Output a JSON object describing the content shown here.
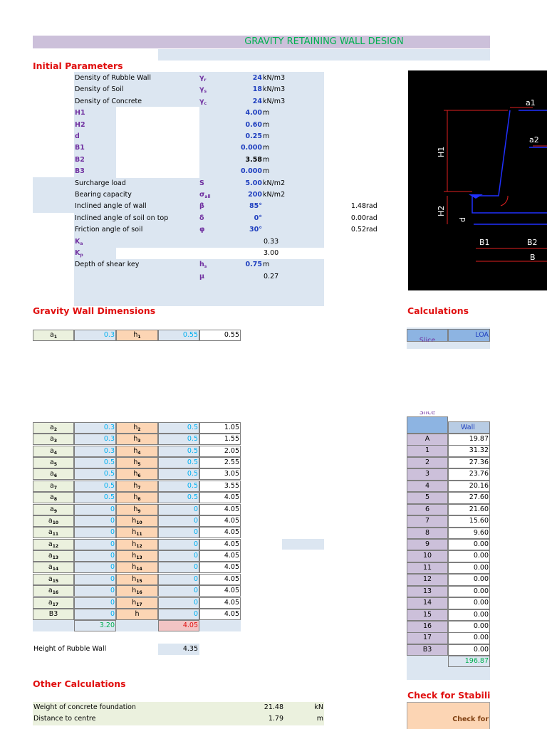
{
  "title": "GRAVITY RETAINING WALL DESIGN",
  "initial_parameters": {
    "heading": "Initial Parameters",
    "rows": [
      {
        "label": "Density of Rubble Wall",
        "symbol": "γ",
        "symbol_sub": "r",
        "value": "24",
        "unit": "kN/m3"
      },
      {
        "label": "Density of Soil",
        "symbol": "γ",
        "symbol_sub": "s",
        "value": "18",
        "unit": "kN/m3"
      },
      {
        "label": "Density of Concrete",
        "symbol": "γ",
        "symbol_sub": "c",
        "value": "24",
        "unit": "kN/m3"
      },
      {
        "label": "H1",
        "value": "4.00",
        "unit": "m"
      },
      {
        "label": "H2",
        "value": "0.60",
        "unit": "m"
      },
      {
        "label": "d",
        "value": "0.25",
        "unit": "m"
      },
      {
        "label": "B1",
        "value": "0.000",
        "unit": "m"
      },
      {
        "label": "B2",
        "value": "3.58",
        "unit": "m"
      },
      {
        "label": "B3",
        "value": "0.000",
        "unit": "m"
      },
      {
        "label": "Surcharge load",
        "symbol": "S",
        "value": "5.00",
        "unit": "kN/m2"
      },
      {
        "label": "Bearing capacity",
        "symbol": "σ",
        "symbol_sub": "all",
        "value": "200",
        "unit": "kN/m2"
      },
      {
        "label": "Inclined angle of wall",
        "symbol": "β",
        "value": "85°",
        "rad": "1.48",
        "rad_unit": "rad"
      },
      {
        "label": "Inclined angle of soil on top",
        "symbol": "δ",
        "value": "0°",
        "rad": "0.00",
        "rad_unit": "rad"
      },
      {
        "label": "Friction angle of soil",
        "symbol": "φ",
        "value": "30°",
        "rad": "0.52",
        "rad_unit": "rad"
      },
      {
        "label": "K",
        "label_sub": "a",
        "value": "0.33"
      },
      {
        "label": "K",
        "label_sub": "p",
        "value": "3.00"
      },
      {
        "label": "Depth of shear key",
        "symbol": "h",
        "symbol_sub": "s",
        "value": "0.75",
        "unit": "m"
      },
      {
        "symbol": "μ",
        "value": "0.27"
      }
    ]
  },
  "diagram": {
    "a1": "a1",
    "a2": "a2",
    "H1": "H1",
    "H2": "H2",
    "d": "d",
    "B1": "B1",
    "B2": "B2",
    "B": "B"
  },
  "dimensions": {
    "heading": "Gravity Wall Dimensions",
    "rows": [
      {
        "a": "a",
        "a_sub": "1",
        "a_value": "0.3",
        "h": "h",
        "h_sub": "1",
        "h_value": "0.55",
        "cumulative": "0.55"
      },
      {
        "a": "a",
        "a_sub": "2",
        "a_value": "0.3",
        "h": "h",
        "h_sub": "2",
        "h_value": "0.5",
        "cumulative": "1.05"
      },
      {
        "a": "a",
        "a_sub": "3",
        "a_value": "0.3",
        "h": "h",
        "h_sub": "3",
        "h_value": "0.5",
        "cumulative": "1.55"
      },
      {
        "a": "a",
        "a_sub": "4",
        "a_value": "0.3",
        "h": "h",
        "h_sub": "4",
        "h_value": "0.5",
        "cumulative": "2.05"
      },
      {
        "a": "a",
        "a_sub": "5",
        "a_value": "0.5",
        "h": "h",
        "h_sub": "5",
        "h_value": "0.5",
        "cumulative": "2.55"
      },
      {
        "a": "a",
        "a_sub": "6",
        "a_value": "0.5",
        "h": "h",
        "h_sub": "6",
        "h_value": "0.5",
        "cumulative": "3.05"
      },
      {
        "a": "a",
        "a_sub": "7",
        "a_value": "0.5",
        "h": "h",
        "h_sub": "7",
        "h_value": "0.5",
        "cumulative": "3.55"
      },
      {
        "a": "a",
        "a_sub": "8",
        "a_value": "0.5",
        "h": "h",
        "h_sub": "8",
        "h_value": "0.5",
        "cumulative": "4.05"
      },
      {
        "a": "a",
        "a_sub": "9",
        "a_value": "0",
        "h": "h",
        "h_sub": "9",
        "h_value": "0",
        "cumulative": "4.05"
      },
      {
        "a": "a",
        "a_sub": "10",
        "a_value": "0",
        "h": "h",
        "h_sub": "10",
        "h_value": "0",
        "cumulative": "4.05"
      },
      {
        "a": "a",
        "a_sub": "11",
        "a_value": "0",
        "h": "h",
        "h_sub": "11",
        "h_value": "0",
        "cumulative": "4.05"
      },
      {
        "a": "a",
        "a_sub": "12",
        "a_value": "0",
        "h": "h",
        "h_sub": "12",
        "h_value": "0",
        "cumulative": "4.05"
      },
      {
        "a": "a",
        "a_sub": "13",
        "a_value": "0",
        "h": "h",
        "h_sub": "13",
        "h_value": "0",
        "cumulative": "4.05"
      },
      {
        "a": "a",
        "a_sub": "14",
        "a_value": "0",
        "h": "h",
        "h_sub": "14",
        "h_value": "0",
        "cumulative": "4.05"
      },
      {
        "a": "a",
        "a_sub": "15",
        "a_value": "0",
        "h": "h",
        "h_sub": "15",
        "h_value": "0",
        "cumulative": "4.05"
      },
      {
        "a": "a",
        "a_sub": "16",
        "a_value": "0",
        "h": "h",
        "h_sub": "16",
        "h_value": "0",
        "cumulative": "4.05"
      },
      {
        "a": "a",
        "a_sub": "17",
        "a_value": "0",
        "h": "h",
        "h_sub": "17",
        "h_value": "0",
        "cumulative": "4.05"
      },
      {
        "a": "B3",
        "a_value": "0",
        "h": "h",
        "h_value": "0",
        "cumulative": "4.05"
      }
    ],
    "total_a": "3.20",
    "total_h": "4.05",
    "rubble_label": "Height of Rubble Wall",
    "rubble_value": "4.35"
  },
  "calculations": {
    "heading": "Calculations",
    "col_slice": "Slice",
    "col_load": "LOA",
    "col_wall": "Wall",
    "slices": [
      "A",
      "1",
      "2",
      "3",
      "4",
      "5",
      "6",
      "7",
      "8",
      "9",
      "10",
      "11",
      "12",
      "13",
      "14",
      "15",
      "16",
      "17",
      "B3"
    ],
    "wall": [
      "19.87",
      "31.32",
      "27.36",
      "23.76",
      "20.16",
      "27.60",
      "21.60",
      "15.60",
      "9.60",
      "0.00",
      "0.00",
      "0.00",
      "0.00",
      "0.00",
      "0.00",
      "0.00",
      "0.00",
      "0.00",
      "0.00"
    ],
    "total": "196.87"
  },
  "other": {
    "heading": "Other Calculations",
    "rows": [
      {
        "label": "Weight of concrete foundation",
        "value": "21.48",
        "unit": "kN"
      },
      {
        "label": "Distance to centre",
        "value": "1.79",
        "unit": "m"
      }
    ]
  },
  "stability": {
    "heading": "Check for Stabili",
    "box": "Check for"
  }
}
